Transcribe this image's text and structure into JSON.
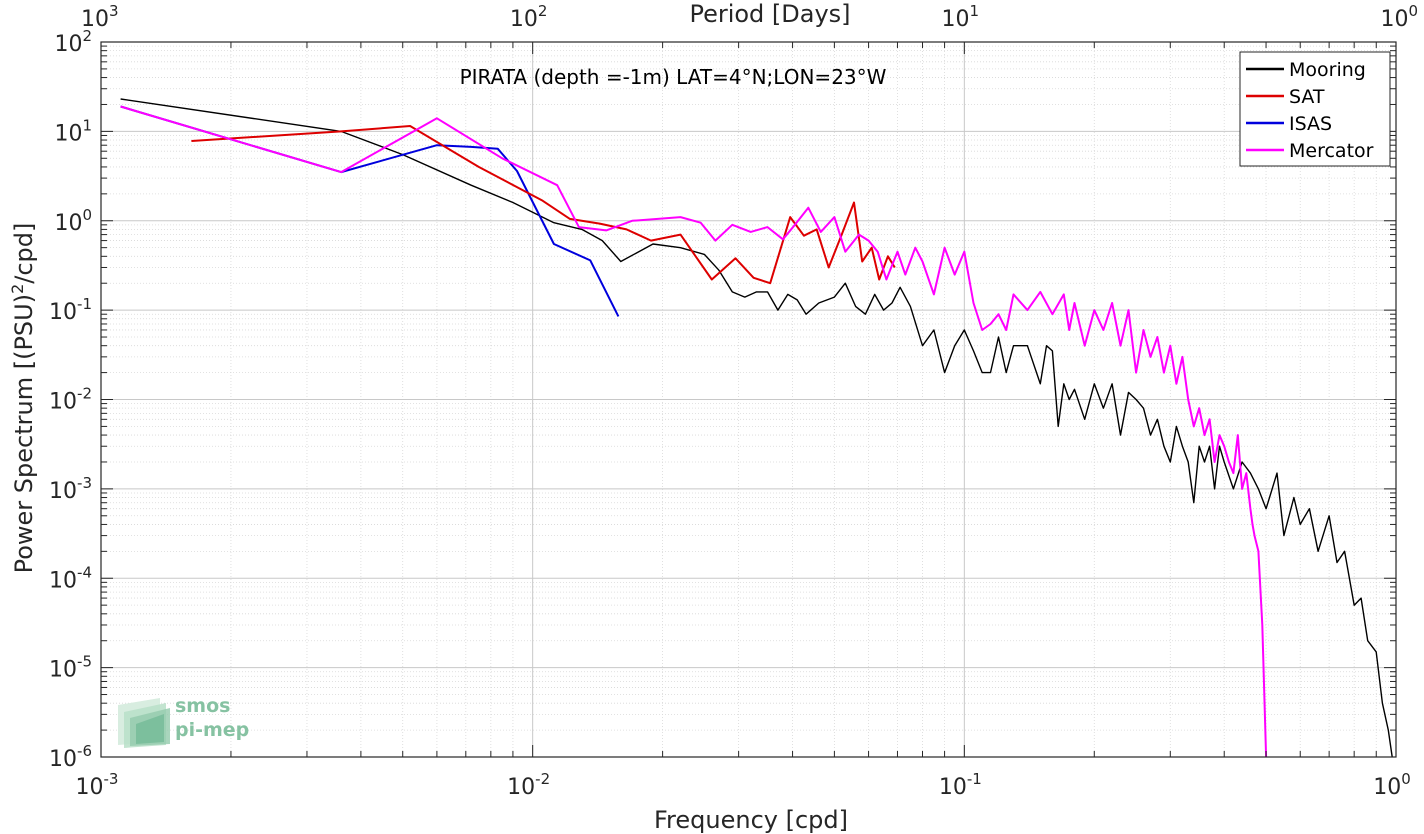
{
  "chart_data": {
    "type": "line",
    "title": "PIRATA (depth =-1m) LAT=4°N;LON=23°W",
    "xlabel": "Frequency [cpd]",
    "ylabel_main": "Power Spectrum [(PSU)",
    "ylabel_sup": "2",
    "ylabel_tail": "/cpd]",
    "top_xlabel": "Period [Days]",
    "x_scale": "log",
    "y_scale": "log",
    "xlim": [
      0.001,
      1
    ],
    "ylim": [
      1e-06,
      100
    ],
    "grid": true,
    "legend_position": "top-right",
    "x_ticks": [
      {
        "value": 0.001,
        "base": "10",
        "exp": "-3"
      },
      {
        "value": 0.01,
        "base": "10",
        "exp": "-2"
      },
      {
        "value": 0.1,
        "base": "10",
        "exp": "-1"
      },
      {
        "value": 1,
        "base": "10",
        "exp": "0"
      }
    ],
    "y_ticks": [
      {
        "value": 100,
        "base": "10",
        "exp": "2"
      },
      {
        "value": 10,
        "base": "10",
        "exp": "1"
      },
      {
        "value": 1,
        "base": "10",
        "exp": "0"
      },
      {
        "value": 0.1,
        "base": "10",
        "exp": "-1"
      },
      {
        "value": 0.01,
        "base": "10",
        "exp": "-2"
      },
      {
        "value": 0.001,
        "base": "10",
        "exp": "-3"
      },
      {
        "value": 0.0001,
        "base": "10",
        "exp": "-4"
      },
      {
        "value": 1e-05,
        "base": "10",
        "exp": "-5"
      },
      {
        "value": 1e-06,
        "base": "10",
        "exp": "-6"
      }
    ],
    "top_ticks": [
      {
        "value": 1000,
        "base": "10",
        "exp": "3"
      },
      {
        "value": 100,
        "base": "10",
        "exp": "2"
      },
      {
        "value": 10,
        "base": "10",
        "exp": "1"
      },
      {
        "value": 1,
        "base": "10",
        "exp": "0"
      }
    ],
    "series": [
      {
        "name": "Mooring",
        "color": "#000000",
        "points": [
          [
            0.00111,
            23
          ],
          [
            0.0036,
            10
          ],
          [
            0.005,
            5.5
          ],
          [
            0.0072,
            2.5
          ],
          [
            0.009,
            1.6
          ],
          [
            0.0112,
            0.95
          ],
          [
            0.013,
            0.8
          ],
          [
            0.0145,
            0.6
          ],
          [
            0.016,
            0.35
          ],
          [
            0.019,
            0.55
          ],
          [
            0.022,
            0.5
          ],
          [
            0.025,
            0.42
          ],
          [
            0.027,
            0.28
          ],
          [
            0.029,
            0.16
          ],
          [
            0.031,
            0.14
          ],
          [
            0.033,
            0.16
          ],
          [
            0.035,
            0.16
          ],
          [
            0.037,
            0.1
          ],
          [
            0.039,
            0.15
          ],
          [
            0.041,
            0.13
          ],
          [
            0.043,
            0.09
          ],
          [
            0.046,
            0.12
          ],
          [
            0.05,
            0.14
          ],
          [
            0.053,
            0.2
          ],
          [
            0.056,
            0.11
          ],
          [
            0.059,
            0.09
          ],
          [
            0.062,
            0.15
          ],
          [
            0.065,
            0.1
          ],
          [
            0.068,
            0.12
          ],
          [
            0.071,
            0.18
          ],
          [
            0.075,
            0.11
          ],
          [
            0.08,
            0.04
          ],
          [
            0.085,
            0.06
          ],
          [
            0.09,
            0.02
          ],
          [
            0.095,
            0.04
          ],
          [
            0.1,
            0.06
          ],
          [
            0.105,
            0.035
          ],
          [
            0.11,
            0.02
          ],
          [
            0.115,
            0.02
          ],
          [
            0.12,
            0.05
          ],
          [
            0.125,
            0.02
          ],
          [
            0.13,
            0.04
          ],
          [
            0.14,
            0.04
          ],
          [
            0.15,
            0.015
          ],
          [
            0.155,
            0.04
          ],
          [
            0.16,
            0.035
          ],
          [
            0.165,
            0.005
          ],
          [
            0.17,
            0.015
          ],
          [
            0.175,
            0.01
          ],
          [
            0.18,
            0.013
          ],
          [
            0.19,
            0.006
          ],
          [
            0.2,
            0.015
          ],
          [
            0.21,
            0.008
          ],
          [
            0.22,
            0.015
          ],
          [
            0.23,
            0.004
          ],
          [
            0.24,
            0.012
          ],
          [
            0.25,
            0.01
          ],
          [
            0.26,
            0.008
          ],
          [
            0.27,
            0.004
          ],
          [
            0.28,
            0.006
          ],
          [
            0.29,
            0.003
          ],
          [
            0.3,
            0.002
          ],
          [
            0.31,
            0.005
          ],
          [
            0.32,
            0.003
          ],
          [
            0.33,
            0.002
          ],
          [
            0.34,
            0.0007
          ],
          [
            0.35,
            0.003
          ],
          [
            0.36,
            0.002
          ],
          [
            0.37,
            0.003
          ],
          [
            0.38,
            0.001
          ],
          [
            0.39,
            0.003
          ],
          [
            0.4,
            0.002
          ],
          [
            0.42,
            0.001
          ],
          [
            0.44,
            0.002
          ],
          [
            0.46,
            0.0015
          ],
          [
            0.48,
            0.001
          ],
          [
            0.5,
            0.0006
          ],
          [
            0.53,
            0.0015
          ],
          [
            0.55,
            0.0003
          ],
          [
            0.58,
            0.0008
          ],
          [
            0.6,
            0.0004
          ],
          [
            0.63,
            0.0006
          ],
          [
            0.66,
            0.0002
          ],
          [
            0.7,
            0.0005
          ],
          [
            0.73,
            0.00015
          ],
          [
            0.76,
            0.0002
          ],
          [
            0.8,
            5e-05
          ],
          [
            0.83,
            6e-05
          ],
          [
            0.86,
            2e-05
          ],
          [
            0.9,
            1.5e-05
          ],
          [
            0.93,
            4e-06
          ],
          [
            0.96,
            2e-06
          ],
          [
            0.98,
            1e-06
          ]
        ]
      },
      {
        "name": "SAT",
        "color": "#dd0000",
        "points": [
          [
            0.00162,
            7.8
          ],
          [
            0.0036,
            10
          ],
          [
            0.0052,
            11.5
          ],
          [
            0.0075,
            4
          ],
          [
            0.0105,
            1.7
          ],
          [
            0.0122,
            1.05
          ],
          [
            0.0143,
            0.93
          ],
          [
            0.0165,
            0.8
          ],
          [
            0.0188,
            0.6
          ],
          [
            0.022,
            0.7
          ],
          [
            0.026,
            0.22
          ],
          [
            0.0295,
            0.38
          ],
          [
            0.0325,
            0.23
          ],
          [
            0.0355,
            0.2
          ],
          [
            0.0395,
            1.1
          ],
          [
            0.0425,
            0.68
          ],
          [
            0.0455,
            0.8
          ],
          [
            0.0485,
            0.3
          ],
          [
            0.052,
            0.7
          ],
          [
            0.0555,
            1.6
          ],
          [
            0.058,
            0.35
          ],
          [
            0.061,
            0.5
          ],
          [
            0.0635,
            0.22
          ],
          [
            0.0665,
            0.4
          ],
          [
            0.069,
            0.3
          ]
        ]
      },
      {
        "name": "ISAS",
        "color": "#0000dd",
        "points": [
          [
            0.00111,
            19
          ],
          [
            0.0036,
            3.5
          ],
          [
            0.006,
            7
          ],
          [
            0.0072,
            6.7
          ],
          [
            0.0083,
            6.4
          ],
          [
            0.0092,
            3.6
          ],
          [
            0.0112,
            0.55
          ],
          [
            0.0136,
            0.36
          ],
          [
            0.0158,
            0.085
          ]
        ]
      },
      {
        "name": "Mercator",
        "color": "#ff00ff",
        "points": [
          [
            0.00111,
            19
          ],
          [
            0.0036,
            3.5
          ],
          [
            0.006,
            14
          ],
          [
            0.0085,
            5
          ],
          [
            0.0114,
            2.5
          ],
          [
            0.0128,
            0.85
          ],
          [
            0.0148,
            0.78
          ],
          [
            0.017,
            1
          ],
          [
            0.0195,
            1.05
          ],
          [
            0.022,
            1.1
          ],
          [
            0.0245,
            0.95
          ],
          [
            0.0265,
            0.6
          ],
          [
            0.029,
            0.9
          ],
          [
            0.032,
            0.75
          ],
          [
            0.035,
            0.85
          ],
          [
            0.038,
            0.62
          ],
          [
            0.0405,
            0.9
          ],
          [
            0.0435,
            1.4
          ],
          [
            0.0465,
            0.75
          ],
          [
            0.05,
            1.1
          ],
          [
            0.053,
            0.45
          ],
          [
            0.057,
            0.7
          ],
          [
            0.06,
            0.6
          ],
          [
            0.063,
            0.45
          ],
          [
            0.066,
            0.22
          ],
          [
            0.07,
            0.45
          ],
          [
            0.073,
            0.25
          ],
          [
            0.077,
            0.5
          ],
          [
            0.08,
            0.35
          ],
          [
            0.085,
            0.15
          ],
          [
            0.09,
            0.5
          ],
          [
            0.095,
            0.25
          ],
          [
            0.1,
            0.45
          ],
          [
            0.105,
            0.12
          ],
          [
            0.11,
            0.06
          ],
          [
            0.115,
            0.07
          ],
          [
            0.12,
            0.09
          ],
          [
            0.125,
            0.06
          ],
          [
            0.13,
            0.15
          ],
          [
            0.14,
            0.1
          ],
          [
            0.15,
            0.16
          ],
          [
            0.16,
            0.09
          ],
          [
            0.17,
            0.15
          ],
          [
            0.175,
            0.06
          ],
          [
            0.18,
            0.12
          ],
          [
            0.19,
            0.04
          ],
          [
            0.2,
            0.1
          ],
          [
            0.21,
            0.06
          ],
          [
            0.22,
            0.12
          ],
          [
            0.23,
            0.04
          ],
          [
            0.24,
            0.1
          ],
          [
            0.25,
            0.02
          ],
          [
            0.26,
            0.06
          ],
          [
            0.27,
            0.03
          ],
          [
            0.28,
            0.05
          ],
          [
            0.29,
            0.02
          ],
          [
            0.3,
            0.04
          ],
          [
            0.31,
            0.015
          ],
          [
            0.32,
            0.03
          ],
          [
            0.33,
            0.01
          ],
          [
            0.34,
            0.005
          ],
          [
            0.35,
            0.008
          ],
          [
            0.36,
            0.004
          ],
          [
            0.37,
            0.006
          ],
          [
            0.38,
            0.002
          ],
          [
            0.39,
            0.004
          ],
          [
            0.4,
            0.003
          ],
          [
            0.41,
            0.002
          ],
          [
            0.42,
            0.0015
          ],
          [
            0.43,
            0.004
          ],
          [
            0.44,
            0.001
          ],
          [
            0.45,
            0.0015
          ],
          [
            0.46,
            0.0006
          ],
          [
            0.465,
            0.0004
          ],
          [
            0.47,
            0.0003
          ],
          [
            0.48,
            0.0002
          ],
          [
            0.49,
            3e-05
          ],
          [
            0.5,
            1e-06
          ]
        ]
      }
    ],
    "logo": {
      "line1": "smos",
      "line2": "pi-mep"
    }
  }
}
